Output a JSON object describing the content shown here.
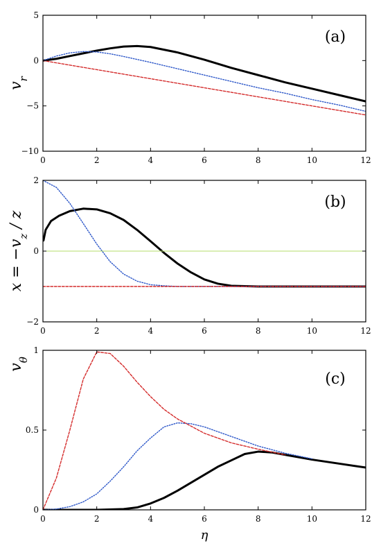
{
  "chart_data": [
    {
      "type": "line",
      "panel_label": "(a)",
      "ylabel": "v",
      "ylabel_sub": "r",
      "xlabel": "",
      "xlim": [
        0,
        12
      ],
      "ylim": [
        -10,
        5
      ],
      "xticks": [
        0,
        2,
        4,
        6,
        8,
        10,
        12
      ],
      "yticks": [
        -10,
        -5,
        0,
        5
      ],
      "xtick_labels": [
        "0",
        "2",
        "4",
        "6",
        "8",
        "10",
        "12"
      ],
      "ytick_labels": [
        "−10",
        "−5",
        "0",
        "5"
      ],
      "grid": false,
      "series": [
        {
          "style": "solid",
          "color": "#000000",
          "x": [
            0,
            0.5,
            1,
            1.5,
            2,
            2.5,
            3,
            3.5,
            4,
            5,
            6,
            7,
            8,
            9,
            10,
            11,
            12
          ],
          "y": [
            0,
            0.2,
            0.5,
            0.8,
            1.1,
            1.35,
            1.55,
            1.6,
            1.5,
            0.9,
            0.1,
            -0.8,
            -1.6,
            -2.4,
            -3.1,
            -3.8,
            -4.5
          ]
        },
        {
          "style": "dotted",
          "color": "#2a55c8",
          "x": [
            0,
            0.5,
            1,
            1.5,
            2,
            2.5,
            3,
            4,
            5,
            6,
            7,
            8,
            9,
            10,
            11,
            12
          ],
          "y": [
            0,
            0.5,
            0.85,
            1.0,
            0.95,
            0.75,
            0.45,
            -0.2,
            -0.9,
            -1.6,
            -2.3,
            -3.0,
            -3.6,
            -4.3,
            -4.9,
            -5.6
          ]
        },
        {
          "style": "dashed",
          "color": "#d42a2a",
          "x": [
            0,
            12
          ],
          "y": [
            0,
            -6
          ]
        }
      ]
    },
    {
      "type": "line",
      "panel_label": "(b)",
      "ylabel": "x = −v",
      "ylabel_sub": "z",
      "ylabel_tail": " / z",
      "xlabel": "",
      "xlim": [
        0,
        12
      ],
      "ylim": [
        -2,
        2
      ],
      "xticks": [
        0,
        2,
        4,
        6,
        8,
        10,
        12
      ],
      "yticks": [
        -2,
        0,
        2
      ],
      "xtick_labels": [
        "0",
        "2",
        "4",
        "6",
        "8",
        "10",
        "12"
      ],
      "ytick_labels": [
        "−2",
        "0",
        "2"
      ],
      "grid": false,
      "series": [
        {
          "style": "solid",
          "color": "#000000",
          "x": [
            0.02,
            0.1,
            0.3,
            0.6,
            1,
            1.5,
            2,
            2.5,
            3,
            3.5,
            4,
            4.5,
            5,
            5.5,
            6,
            6.5,
            7,
            8,
            10,
            12
          ],
          "y": [
            0.3,
            0.6,
            0.85,
            1.0,
            1.13,
            1.2,
            1.18,
            1.07,
            0.88,
            0.6,
            0.28,
            -0.05,
            -0.35,
            -0.6,
            -0.8,
            -0.92,
            -0.98,
            -1.0,
            -1.0,
            -1.0
          ]
        },
        {
          "style": "dotted",
          "color": "#2a55c8",
          "x": [
            0,
            0.5,
            1,
            1.5,
            2,
            2.5,
            3,
            3.5,
            4,
            4.5,
            5,
            6,
            12
          ],
          "y": [
            2.0,
            1.8,
            1.35,
            0.78,
            0.2,
            -0.3,
            -0.65,
            -0.85,
            -0.95,
            -0.98,
            -1.0,
            -1.0,
            -1.0
          ]
        },
        {
          "style": "dashed",
          "color": "#d42a2a",
          "x": [
            0,
            12
          ],
          "y": [
            -1,
            -1
          ]
        },
        {
          "style": "solid-thin",
          "color": "#b5dc6a",
          "x": [
            0,
            12
          ],
          "y": [
            0,
            0
          ]
        }
      ]
    },
    {
      "type": "line",
      "panel_label": "(c)",
      "ylabel": "v",
      "ylabel_sub": "θ",
      "xlabel": "η",
      "xlim": [
        0,
        12
      ],
      "ylim": [
        0,
        1
      ],
      "xticks": [
        0,
        2,
        4,
        6,
        8,
        10,
        12
      ],
      "yticks": [
        0,
        0.5,
        1
      ],
      "xtick_labels": [
        "0",
        "2",
        "4",
        "6",
        "8",
        "10",
        "12"
      ],
      "ytick_labels": [
        "0",
        "0.5",
        "1"
      ],
      "grid": false,
      "series": [
        {
          "style": "solid",
          "color": "#000000",
          "x": [
            0,
            2,
            3,
            3.5,
            4,
            4.5,
            5,
            5.5,
            6,
            6.5,
            7,
            7.5,
            8,
            8.5,
            9,
            10,
            11,
            12
          ],
          "y": [
            0,
            0,
            0.005,
            0.015,
            0.04,
            0.075,
            0.12,
            0.17,
            0.22,
            0.27,
            0.31,
            0.35,
            0.365,
            0.36,
            0.345,
            0.315,
            0.29,
            0.265
          ]
        },
        {
          "style": "dotted",
          "color": "#2a55c8",
          "x": [
            0,
            0.5,
            1,
            1.5,
            2,
            2.5,
            3,
            3.5,
            4,
            4.5,
            5,
            5.5,
            6,
            7,
            8,
            9,
            10
          ],
          "y": [
            0,
            0.005,
            0.02,
            0.05,
            0.1,
            0.18,
            0.27,
            0.37,
            0.45,
            0.52,
            0.545,
            0.54,
            0.52,
            0.46,
            0.4,
            0.355,
            0.32
          ]
        },
        {
          "style": "dashed",
          "color": "#d42a2a",
          "x": [
            0,
            0.5,
            1,
            1.5,
            2,
            2.5,
            3,
            3.5,
            4,
            4.5,
            5,
            6,
            7,
            8,
            9
          ],
          "y": [
            0,
            0.2,
            0.5,
            0.82,
            0.99,
            0.98,
            0.9,
            0.8,
            0.71,
            0.63,
            0.57,
            0.48,
            0.42,
            0.38,
            0.345
          ]
        }
      ]
    }
  ]
}
